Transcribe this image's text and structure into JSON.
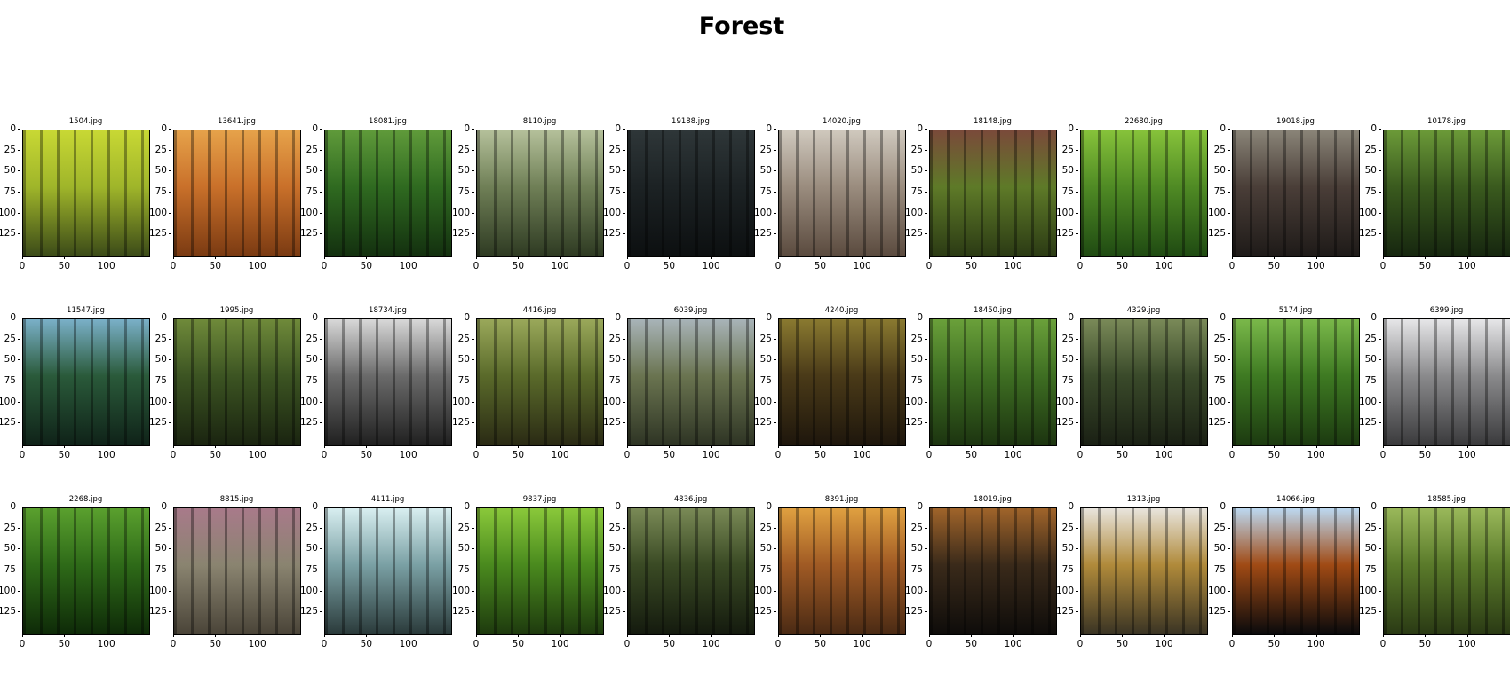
{
  "figure": {
    "title": "Forest"
  },
  "chart_data": {
    "type": "image_grid",
    "title": "Forest",
    "rows": 3,
    "cols": 10,
    "image_size": [
      150,
      150
    ],
    "xticks": [
      0,
      50,
      100
    ],
    "yticks": [
      0,
      25,
      50,
      75,
      100,
      125
    ],
    "xlim": [
      0,
      150
    ],
    "ylim": [
      150,
      0
    ],
    "panels": [
      {
        "title": "1504.jpg",
        "palette": [
          "#3b4a18",
          "#9fb52a",
          "#c8d834"
        ]
      },
      {
        "title": "13641.jpg",
        "palette": [
          "#7a3a12",
          "#c9702a",
          "#e6a24a"
        ]
      },
      {
        "title": "18081.jpg",
        "palette": [
          "#13300f",
          "#2f6a20",
          "#5f9a3a"
        ]
      },
      {
        "title": "8110.jpg",
        "palette": [
          "#2e3a22",
          "#6f7f56",
          "#b4c09a"
        ]
      },
      {
        "title": "19188.jpg",
        "palette": [
          "#0c0f10",
          "#1c2224",
          "#2e3638"
        ]
      },
      {
        "title": "14020.jpg",
        "palette": [
          "#5a4a3e",
          "#9a8c7e",
          "#cfc8bd"
        ]
      },
      {
        "title": "18148.jpg",
        "palette": [
          "#2b3a14",
          "#5e7a28",
          "#7a4a3a"
        ]
      },
      {
        "title": "22680.jpg",
        "palette": [
          "#1f4a12",
          "#4f8a24",
          "#86c23a"
        ]
      },
      {
        "title": "19018.jpg",
        "palette": [
          "#1e1a18",
          "#4a3e38",
          "#8a8478"
        ]
      },
      {
        "title": "10178.jpg",
        "palette": [
          "#16260f",
          "#3a5a1e",
          "#6b9a38"
        ]
      },
      {
        "title": "11547.jpg",
        "palette": [
          "#0f2218",
          "#2a5a3a",
          "#7ab0c8"
        ]
      },
      {
        "title": "1995.jpg",
        "palette": [
          "#1a2410",
          "#3c5422",
          "#6f8a3a"
        ]
      },
      {
        "title": "18734.jpg",
        "palette": [
          "#202020",
          "#6a6a6a",
          "#d8d8d8"
        ]
      },
      {
        "title": "4416.jpg",
        "palette": [
          "#2a2a14",
          "#5a6a2a",
          "#9aa85a"
        ]
      },
      {
        "title": "6039.jpg",
        "palette": [
          "#2e3424",
          "#6a7450",
          "#a8b4b8"
        ]
      },
      {
        "title": "4240.jpg",
        "palette": [
          "#1e160c",
          "#4a3a18",
          "#8a7a30"
        ]
      },
      {
        "title": "18450.jpg",
        "palette": [
          "#1c3410",
          "#3e6e22",
          "#6aa03a"
        ]
      },
      {
        "title": "4329.jpg",
        "palette": [
          "#1a2014",
          "#3a4a2a",
          "#7a8a58"
        ]
      },
      {
        "title": "5174.jpg",
        "palette": [
          "#1c3a10",
          "#3e7a22",
          "#7ab84a"
        ]
      },
      {
        "title": "6399.jpg",
        "palette": [
          "#3a3a3c",
          "#8a8a8c",
          "#e6e6e8"
        ]
      },
      {
        "title": "2268.jpg",
        "palette": [
          "#0e2a08",
          "#2e6a18",
          "#5aa02e"
        ]
      },
      {
        "title": "8815.jpg",
        "palette": [
          "#4a4438",
          "#8a8470",
          "#a87a8a"
        ]
      },
      {
        "title": "4111.jpg",
        "palette": [
          "#2a3a3a",
          "#7aa0a4",
          "#d8eef0"
        ]
      },
      {
        "title": "9837.jpg",
        "palette": [
          "#1e3a0e",
          "#4a8a1e",
          "#8ac83a"
        ]
      },
      {
        "title": "4836.jpg",
        "palette": [
          "#141a0e",
          "#3a4a24",
          "#7a8a56"
        ]
      },
      {
        "title": "8391.jpg",
        "palette": [
          "#4a2a14",
          "#a05a24",
          "#e0a040"
        ]
      },
      {
        "title": "18019.jpg",
        "palette": [
          "#0e0c0a",
          "#3a2a1a",
          "#a0642a"
        ]
      },
      {
        "title": "1313.jpg",
        "palette": [
          "#3a3424",
          "#b08a3a",
          "#e8e4dc"
        ]
      },
      {
        "title": "14066.jpg",
        "palette": [
          "#0a0a0c",
          "#a04a14",
          "#bcd8f0"
        ]
      },
      {
        "title": "18585.jpg",
        "palette": [
          "#2a3a14",
          "#5a7a2a",
          "#9ab85a"
        ]
      }
    ]
  }
}
